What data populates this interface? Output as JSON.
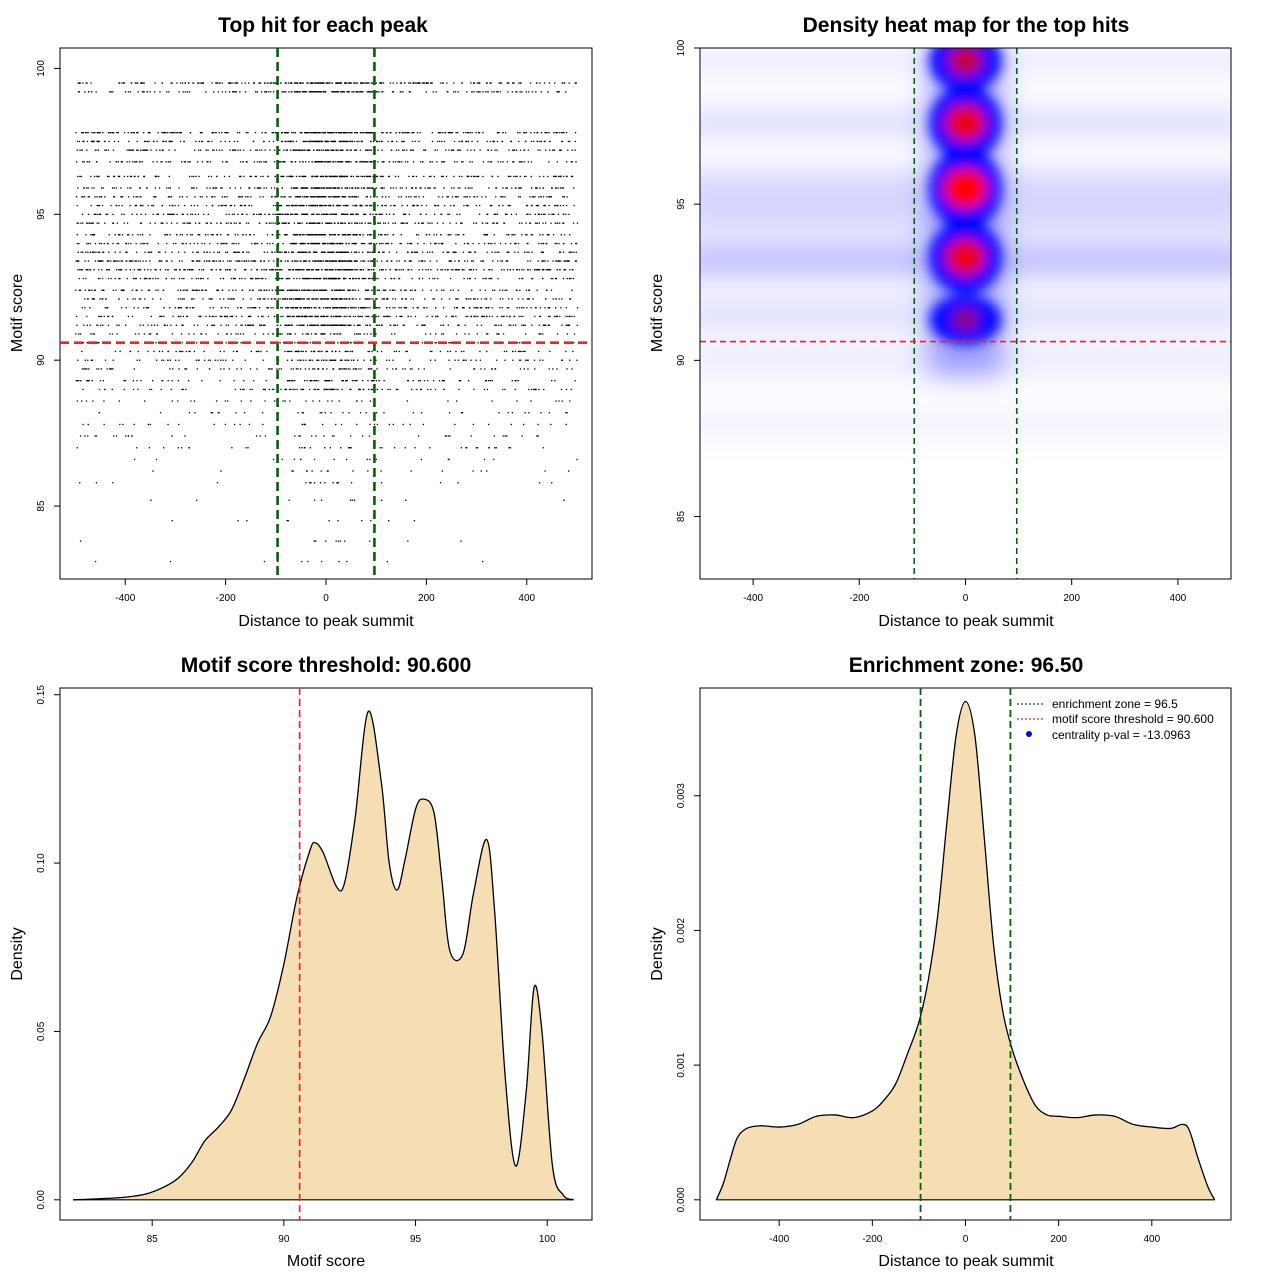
{
  "panels": {
    "scatter": {
      "title": "Top hit for each peak",
      "xlabel": "Distance to peak summit",
      "ylabel": "Motif score"
    },
    "heatmap": {
      "title": "Density heat map for the top hits",
      "xlabel": "Distance to peak summit",
      "ylabel": "Motif score"
    },
    "score_density": {
      "title": "Motif score threshold: 90.600",
      "xlabel": "Motif score",
      "ylabel": "Density"
    },
    "distance_density": {
      "title": "Enrichment zone: 96.50",
      "xlabel": "Distance to peak summit",
      "ylabel": "Density",
      "legend": [
        "enrichment zone = 96.5",
        "motif score threshold = 90.600",
        "centrality p-val = -13.0963"
      ]
    }
  },
  "colors": {
    "fill": "#F5DEB3",
    "threshold": "#E8262A",
    "zone": "#006400",
    "point": "#000000",
    "heat_low": "#FFFFFF",
    "heat_mid": "#0000FF",
    "heat_high": "#FF0000",
    "pval_marker": "#0000FF"
  },
  "chart_data": [
    {
      "type": "scatter",
      "title": "Top hit for each peak",
      "xlabel": "Distance to peak summit",
      "ylabel": "Motif score",
      "xlim": [
        -530,
        530
      ],
      "ylim": [
        82.5,
        100.7
      ],
      "xticks": [
        -400,
        -200,
        0,
        200,
        400
      ],
      "yticks": [
        85,
        90,
        95,
        100
      ],
      "x_range": [
        -500,
        500
      ],
      "score_levels": [
        99.5,
        99.2,
        97.8,
        97.5,
        97.2,
        96.8,
        96.3,
        95.9,
        95.6,
        95.3,
        95.0,
        94.7,
        94.3,
        94.0,
        93.7,
        93.4,
        93.1,
        92.8,
        92.4,
        92.1,
        91.8,
        91.5,
        91.2,
        90.9,
        90.6,
        90.3,
        90.0,
        89.7,
        89.3,
        89.0,
        88.6,
        88.2,
        87.8,
        87.4,
        87.0,
        86.6,
        86.2,
        85.8,
        85.2,
        84.5,
        83.8,
        83.1
      ],
      "hlines": [
        {
          "y": 90.6,
          "style": "dashed",
          "color": "#E8262A"
        }
      ],
      "vlines": [
        {
          "x": -96.5,
          "style": "dashed",
          "color": "#006400"
        },
        {
          "x": 96.5,
          "style": "dashed",
          "color": "#006400"
        }
      ]
    },
    {
      "type": "heatmap",
      "title": "Density heat map for the top hits",
      "xlabel": "Distance to peak summit",
      "ylabel": "Motif score",
      "xlim": [
        -500,
        500
      ],
      "ylim": [
        83,
        100
      ],
      "xticks": [
        -400,
        -200,
        0,
        200,
        400
      ],
      "yticks": [
        85,
        90,
        95,
        100
      ],
      "hot_spots": [
        {
          "x": 0,
          "y": 99.6,
          "intensity": 0.75
        },
        {
          "x": 0,
          "y": 97.6,
          "intensity": 0.9
        },
        {
          "x": 0,
          "y": 95.5,
          "intensity": 1.0
        },
        {
          "x": 0,
          "y": 93.3,
          "intensity": 0.9
        },
        {
          "x": 0,
          "y": 91.3,
          "intensity": 0.55
        }
      ],
      "background_bands": [
        {
          "y": 99.6,
          "intensity": 0.08
        },
        {
          "y": 97.6,
          "intensity": 0.14
        },
        {
          "y": 95.6,
          "intensity": 0.18
        },
        {
          "y": 94.6,
          "intensity": 0.18
        },
        {
          "y": 93.2,
          "intensity": 0.3
        },
        {
          "y": 91.5,
          "intensity": 0.14
        },
        {
          "y": 90.0,
          "intensity": 0.09
        },
        {
          "y": 88.0,
          "intensity": 0.05
        }
      ],
      "hlines": [
        {
          "y": 90.6,
          "style": "dashed",
          "color": "#E8262A"
        }
      ],
      "vlines": [
        {
          "x": -96.5,
          "style": "dashed",
          "color": "#006400"
        },
        {
          "x": 96.5,
          "style": "dashed",
          "color": "#006400"
        }
      ]
    },
    {
      "type": "area",
      "title": "Motif score threshold: 90.600",
      "xlabel": "Motif score",
      "ylabel": "Density",
      "xlim": [
        81.5,
        101.7
      ],
      "ylim": [
        -0.006,
        0.152
      ],
      "xticks": [
        85,
        90,
        95,
        100
      ],
      "yticks": [
        0.0,
        0.05,
        0.1,
        0.15
      ],
      "ytick_labels": [
        "0.00",
        "0.05",
        "0.10",
        "0.15"
      ],
      "x": [
        82.0,
        83.0,
        84.0,
        84.8,
        85.5,
        86.0,
        86.5,
        87.0,
        87.5,
        88.0,
        88.5,
        89.0,
        89.5,
        90.0,
        90.5,
        91.0,
        91.2,
        91.5,
        92.0,
        92.3,
        92.7,
        93.2,
        93.7,
        94.0,
        94.3,
        94.6,
        95.0,
        95.3,
        95.7,
        96.0,
        96.3,
        96.8,
        97.2,
        97.7,
        98.0,
        98.4,
        98.8,
        99.2,
        99.5,
        99.8,
        100.2,
        100.6,
        101.0
      ],
      "y": [
        0.0,
        0.0003,
        0.0008,
        0.0018,
        0.004,
        0.0065,
        0.011,
        0.0175,
        0.0215,
        0.0265,
        0.036,
        0.0465,
        0.0545,
        0.07,
        0.09,
        0.104,
        0.106,
        0.103,
        0.093,
        0.094,
        0.113,
        0.145,
        0.124,
        0.1,
        0.092,
        0.101,
        0.116,
        0.119,
        0.115,
        0.095,
        0.074,
        0.073,
        0.091,
        0.107,
        0.086,
        0.037,
        0.01,
        0.032,
        0.063,
        0.05,
        0.01,
        0.0015,
        0.0
      ],
      "vlines": [
        {
          "x": 90.6,
          "style": "dashed",
          "color": "#E8262A"
        }
      ]
    },
    {
      "type": "area",
      "title": "Enrichment zone: 96.50",
      "xlabel": "Distance to peak summit",
      "ylabel": "Density",
      "xlim": [
        -570,
        570
      ],
      "ylim": [
        -0.00015,
        0.0038
      ],
      "xticks": [
        -400,
        -200,
        0,
        200,
        400
      ],
      "yticks": [
        0.0,
        0.001,
        0.002,
        0.003
      ],
      "ytick_labels": [
        "0.000",
        "0.001",
        "0.002",
        "0.003"
      ],
      "x": [
        -535,
        -520,
        -505,
        -490,
        -470,
        -440,
        -400,
        -360,
        -320,
        -280,
        -240,
        -200,
        -175,
        -150,
        -125,
        -100,
        -80,
        -60,
        -40,
        -20,
        0,
        20,
        40,
        60,
        80,
        100,
        125,
        150,
        175,
        200,
        240,
        280,
        320,
        360,
        400,
        440,
        465,
        480,
        500,
        520,
        535
      ],
      "y": [
        0.0,
        0.00012,
        0.0003,
        0.00046,
        0.00053,
        0.00055,
        0.00054,
        0.00056,
        0.00062,
        0.00063,
        0.00061,
        0.00066,
        0.00074,
        0.00086,
        0.00108,
        0.00132,
        0.00163,
        0.0021,
        0.0028,
        0.00345,
        0.0037,
        0.00345,
        0.0027,
        0.0019,
        0.0014,
        0.00112,
        0.00088,
        0.0007,
        0.00063,
        0.00062,
        0.00061,
        0.00063,
        0.00062,
        0.00056,
        0.00054,
        0.00053,
        0.00056,
        0.00052,
        0.0003,
        0.0001,
        0.0
      ],
      "vlines": [
        {
          "x": -96.5,
          "style": "dashed",
          "color": "#006400"
        },
        {
          "x": 96.5,
          "style": "dashed",
          "color": "#006400"
        }
      ],
      "legend_position": "top-right"
    }
  ]
}
